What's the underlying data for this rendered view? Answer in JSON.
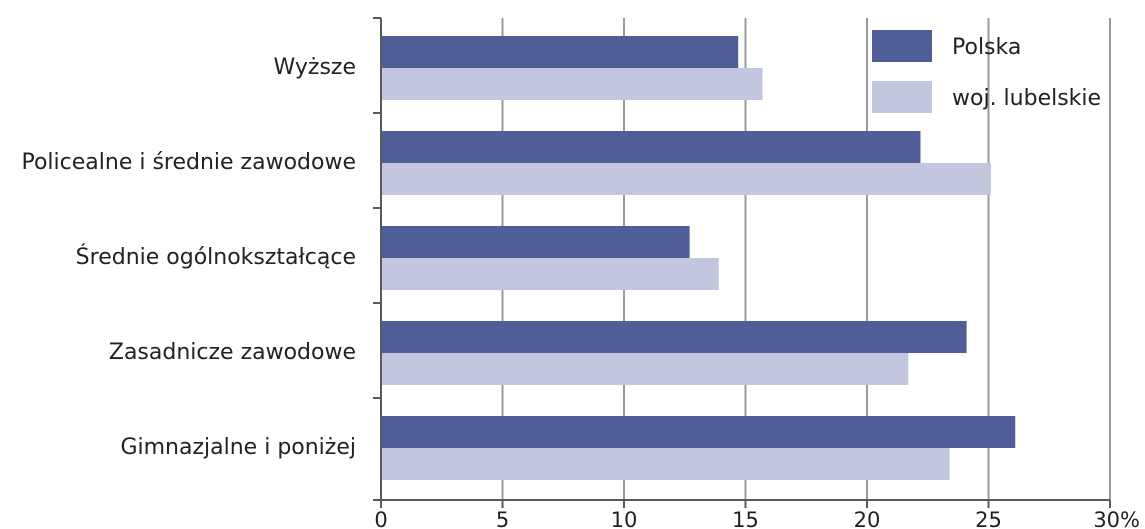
{
  "chart_data": {
    "type": "bar",
    "orientation": "horizontal",
    "categories": [
      "Wyższe",
      "Policealne i średnie zawodowe",
      "Średnie ogólnokształcące",
      "Zasadnicze zawodowe",
      "Gimnazjalne i poniżej"
    ],
    "series": [
      {
        "name": "Polska",
        "color": "#4f5e96",
        "values": [
          14.7,
          22.2,
          12.7,
          24.1,
          26.1
        ]
      },
      {
        "name": "woj. lubelskie",
        "color": "#c2c6de",
        "values": [
          15.7,
          25.1,
          13.9,
          21.7,
          23.4
        ]
      }
    ],
    "xlim": [
      0,
      30
    ],
    "xticks": [
      "0",
      "5",
      "10",
      "15",
      "20",
      "25",
      "30%"
    ],
    "grid": "vertical",
    "legend_position": "top-right"
  }
}
